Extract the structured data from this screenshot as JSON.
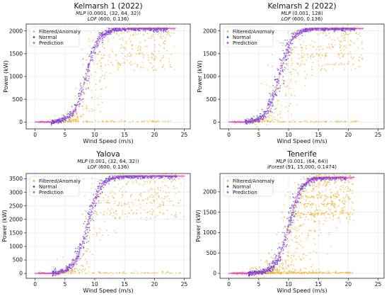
{
  "colors": {
    "anomaly": "#f2b53a",
    "normal": "#4a3fd6",
    "prediction": "#e23ad0"
  },
  "legend": {
    "anomaly": "Filtered/Anomaly",
    "normal": "Normal",
    "prediction": "Prediction"
  },
  "chart_data": [
    {
      "type": "scatter",
      "title": "Kelmarsh 1 (2022)",
      "subtitle1_model": "MLP",
      "subtitle1_params": "(0.0001, (32, 64, 32))",
      "subtitle2_model": "LOF",
      "subtitle2_params": "(600, 0.136)",
      "xlabel": "Wind Speed (m/s)",
      "ylabel": "Power (kW)",
      "xlim": [
        -1.5,
        26
      ],
      "ylim": [
        -150,
        2150
      ],
      "xticks": [
        0,
        5,
        10,
        15,
        20,
        25
      ],
      "yticks": [
        0,
        500,
        1000,
        1500,
        2000
      ],
      "rated_power": 2050,
      "cut_in": 3,
      "mid_speed": 8.6,
      "steepness": 0.95,
      "max_speed": 23.5,
      "grid": true,
      "legend_position": "top-left",
      "series": [
        {
          "name": "Filtered/Anomaly",
          "kind": "anomaly"
        },
        {
          "name": "Normal",
          "kind": "normal"
        },
        {
          "name": "Prediction",
          "kind": "prediction"
        }
      ]
    },
    {
      "type": "scatter",
      "title": "Kelmarsh 2 (2022)",
      "subtitle1_model": "MLP",
      "subtitle1_params": "(0.001, 128)",
      "subtitle2_model": "LOF",
      "subtitle2_params": "(600, 0.136)",
      "xlabel": "Wind Speed (m/s)",
      "ylabel": "Power (kW)",
      "xlim": [
        -1.5,
        26
      ],
      "ylim": [
        -150,
        2150
      ],
      "xticks": [
        0,
        5,
        10,
        15,
        20,
        25
      ],
      "yticks": [
        0,
        500,
        1000,
        1500,
        2000
      ],
      "rated_power": 2050,
      "cut_in": 3,
      "mid_speed": 8.5,
      "steepness": 0.95,
      "max_speed": 22.5,
      "grid": true,
      "legend_position": "top-left",
      "series": [
        {
          "name": "Filtered/Anomaly",
          "kind": "anomaly"
        },
        {
          "name": "Normal",
          "kind": "normal"
        },
        {
          "name": "Prediction",
          "kind": "prediction"
        }
      ]
    },
    {
      "type": "scatter",
      "title": "Yalova",
      "subtitle1_model": "MLP",
      "subtitle1_params": "(0.001, (32, 64, 32))",
      "subtitle2_model": "LOF",
      "subtitle2_params": "(600, 0.136)",
      "xlabel": "Wind Speed (m/s)",
      "ylabel": "Power (kW)",
      "xlim": [
        -1.5,
        26
      ],
      "ylim": [
        -180,
        3700
      ],
      "xticks": [
        0,
        5,
        10,
        15,
        20,
        25
      ],
      "yticks": [
        0,
        500,
        1000,
        1500,
        2000,
        2500,
        3000,
        3500
      ],
      "rated_power": 3600,
      "cut_in": 3.2,
      "mid_speed": 8.8,
      "steepness": 0.9,
      "max_speed": 25,
      "grid": true,
      "legend_position": "top-left",
      "series": [
        {
          "name": "Filtered/Anomaly",
          "kind": "anomaly"
        },
        {
          "name": "Normal",
          "kind": "normal"
        },
        {
          "name": "Prediction",
          "kind": "prediction"
        }
      ]
    },
    {
      "type": "scatter",
      "title": "Tenerife",
      "subtitle1_model": "MLP",
      "subtitle1_params": "(0.001, (64, 64))",
      "subtitle2_model": "iForest",
      "subtitle2_params": "(91, 15,000, 0.1474)",
      "xlabel": "Wind Speed (m/s)",
      "ylabel": "Power (kW)",
      "xlim": [
        -1.5,
        26
      ],
      "ylim": [
        -120,
        2450
      ],
      "xticks": [
        0,
        5,
        10,
        15,
        20,
        25
      ],
      "yticks": [
        0,
        500,
        1000,
        1500,
        2000
      ],
      "rated_power": 2350,
      "cut_in": 3.5,
      "mid_speed": 10.0,
      "steepness": 0.95,
      "max_speed": 21,
      "grid": true,
      "legend_position": "top-left",
      "series": [
        {
          "name": "Filtered/Anomaly",
          "kind": "anomaly"
        },
        {
          "name": "Normal",
          "kind": "normal"
        },
        {
          "name": "Prediction",
          "kind": "prediction"
        }
      ]
    }
  ]
}
